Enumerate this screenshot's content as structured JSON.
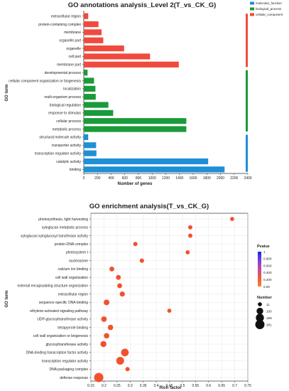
{
  "chart_data": [
    {
      "type": "bar",
      "orientation": "horizontal",
      "title": "GO annotations analysis_Level 2(T_vs_CK_G)",
      "xlabel": "Number of genes",
      "ylabel": "GO term",
      "xlim": [
        0,
        2400
      ],
      "xticks": [
        "0",
        "200",
        "400",
        "600",
        "800",
        "1000",
        "1200",
        "1400",
        "1600",
        "1800",
        "2000",
        "2200",
        "2400"
      ],
      "legend": {
        "position": "top-right",
        "items": [
          {
            "name": "molecular_function",
            "color": "#1f8fd6"
          },
          {
            "name": "biological_process",
            "color": "#1a9a3a"
          },
          {
            "name": "cellular_component",
            "color": "#f04a3e"
          }
        ]
      },
      "categories": [
        {
          "label": "extracellular region",
          "value": 65,
          "group": "cellular_component"
        },
        {
          "label": "protein-containing complex",
          "value": 215,
          "group": "cellular_component"
        },
        {
          "label": "membrane",
          "value": 260,
          "group": "cellular_component"
        },
        {
          "label": "organelle part",
          "value": 285,
          "group": "cellular_component"
        },
        {
          "label": "organelle",
          "value": 590,
          "group": "cellular_component"
        },
        {
          "label": "cell part",
          "value": 970,
          "group": "cellular_component"
        },
        {
          "label": "membrane part",
          "value": 1390,
          "group": "cellular_component"
        },
        {
          "label": "developmental process",
          "value": 55,
          "group": "biological_process"
        },
        {
          "label": "cellular component organization or biogenesis",
          "value": 150,
          "group": "biological_process"
        },
        {
          "label": "localization",
          "value": 170,
          "group": "biological_process"
        },
        {
          "label": "multi-organism process",
          "value": 175,
          "group": "biological_process"
        },
        {
          "label": "biological regulation",
          "value": 360,
          "group": "biological_process"
        },
        {
          "label": "response to stimulus",
          "value": 430,
          "group": "biological_process"
        },
        {
          "label": "cellular process",
          "value": 1500,
          "group": "biological_process"
        },
        {
          "label": "metabolic process",
          "value": 1500,
          "group": "biological_process"
        },
        {
          "label": "structural molecule activity",
          "value": 65,
          "group": "molecular_function"
        },
        {
          "label": "transporter activity",
          "value": 180,
          "group": "molecular_function"
        },
        {
          "label": "transcription regulator activity",
          "value": 185,
          "group": "molecular_function"
        },
        {
          "label": "catalytic activity",
          "value": 1820,
          "group": "molecular_function"
        },
        {
          "label": "binding",
          "value": 2060,
          "group": "molecular_function"
        }
      ]
    },
    {
      "type": "scatter",
      "title": "GO enrichment analysis(T_vs_CK_G)",
      "xlabel": "Rich factor",
      "ylabel": "GO term",
      "xlim": [
        0.15,
        0.75
      ],
      "xticks": [
        "0.15",
        "0.2",
        "0.25",
        "0.3",
        "0.35",
        "0.4",
        "0.45",
        "0.5",
        "0.55",
        "0.6",
        "0.65",
        "0.7",
        "0.75"
      ],
      "grid": true,
      "pvalue_legend": {
        "title": "Pvalue",
        "ticks": [
          "1",
          "0.800",
          "0.600",
          "0.400",
          "0.200",
          "0.00"
        ],
        "colors": [
          "#1a2bd8",
          "#7b3fe0",
          "#c14aa6",
          "#ef5a3c",
          "#f98530"
        ]
      },
      "size_legend": {
        "title": "Number",
        "items": [
          {
            "label": "11",
            "value": 11
          },
          {
            "label": "100",
            "value": 100
          },
          {
            "label": "189",
            "value": 189
          },
          {
            "label": "281",
            "value": 281
          }
        ]
      },
      "points": [
        {
          "term": "photosynthesis, light harvesting",
          "rich": 0.69,
          "number": 11
        },
        {
          "term": "xyloglucan metabolic process",
          "rich": 0.53,
          "number": 14
        },
        {
          "term": "xyloglucan:xyloglucosyl transferase activity",
          "rich": 0.53,
          "number": 14
        },
        {
          "term": "protein-DNA complex",
          "rich": 0.32,
          "number": 14
        },
        {
          "term": "photosystem I",
          "rich": 0.52,
          "number": 12
        },
        {
          "term": "nucleosome",
          "rich": 0.345,
          "number": 15
        },
        {
          "term": "calcium ion binding",
          "rich": 0.23,
          "number": 30
        },
        {
          "term": "cell wall organization",
          "rich": 0.255,
          "number": 28
        },
        {
          "term": "external encapsulating structure organization",
          "rich": 0.26,
          "number": 28
        },
        {
          "term": "extracellular region",
          "rich": 0.27,
          "number": 35
        },
        {
          "term": "sequence-specific DNA binding",
          "rich": 0.21,
          "number": 55
        },
        {
          "term": "ethylene-activated signaling pathway",
          "rich": 0.45,
          "number": 12
        },
        {
          "term": "UDP-glycosyltransferase activity",
          "rich": 0.2,
          "number": 50
        },
        {
          "term": "tetrapyrrole binding",
          "rich": 0.225,
          "number": 45
        },
        {
          "term": "cell wall organization or biogenesis",
          "rich": 0.21,
          "number": 45
        },
        {
          "term": "glycosyltransferase activity",
          "rich": 0.198,
          "number": 70
        },
        {
          "term": "DNA-binding transcription factor activity",
          "rich": 0.28,
          "number": 160
        },
        {
          "term": "transcription regulator activity",
          "rich": 0.262,
          "number": 170
        },
        {
          "term": "DNA packaging complex",
          "rich": 0.29,
          "number": 14
        },
        {
          "term": "defense response",
          "rich": 0.18,
          "number": 281
        }
      ]
    }
  ]
}
